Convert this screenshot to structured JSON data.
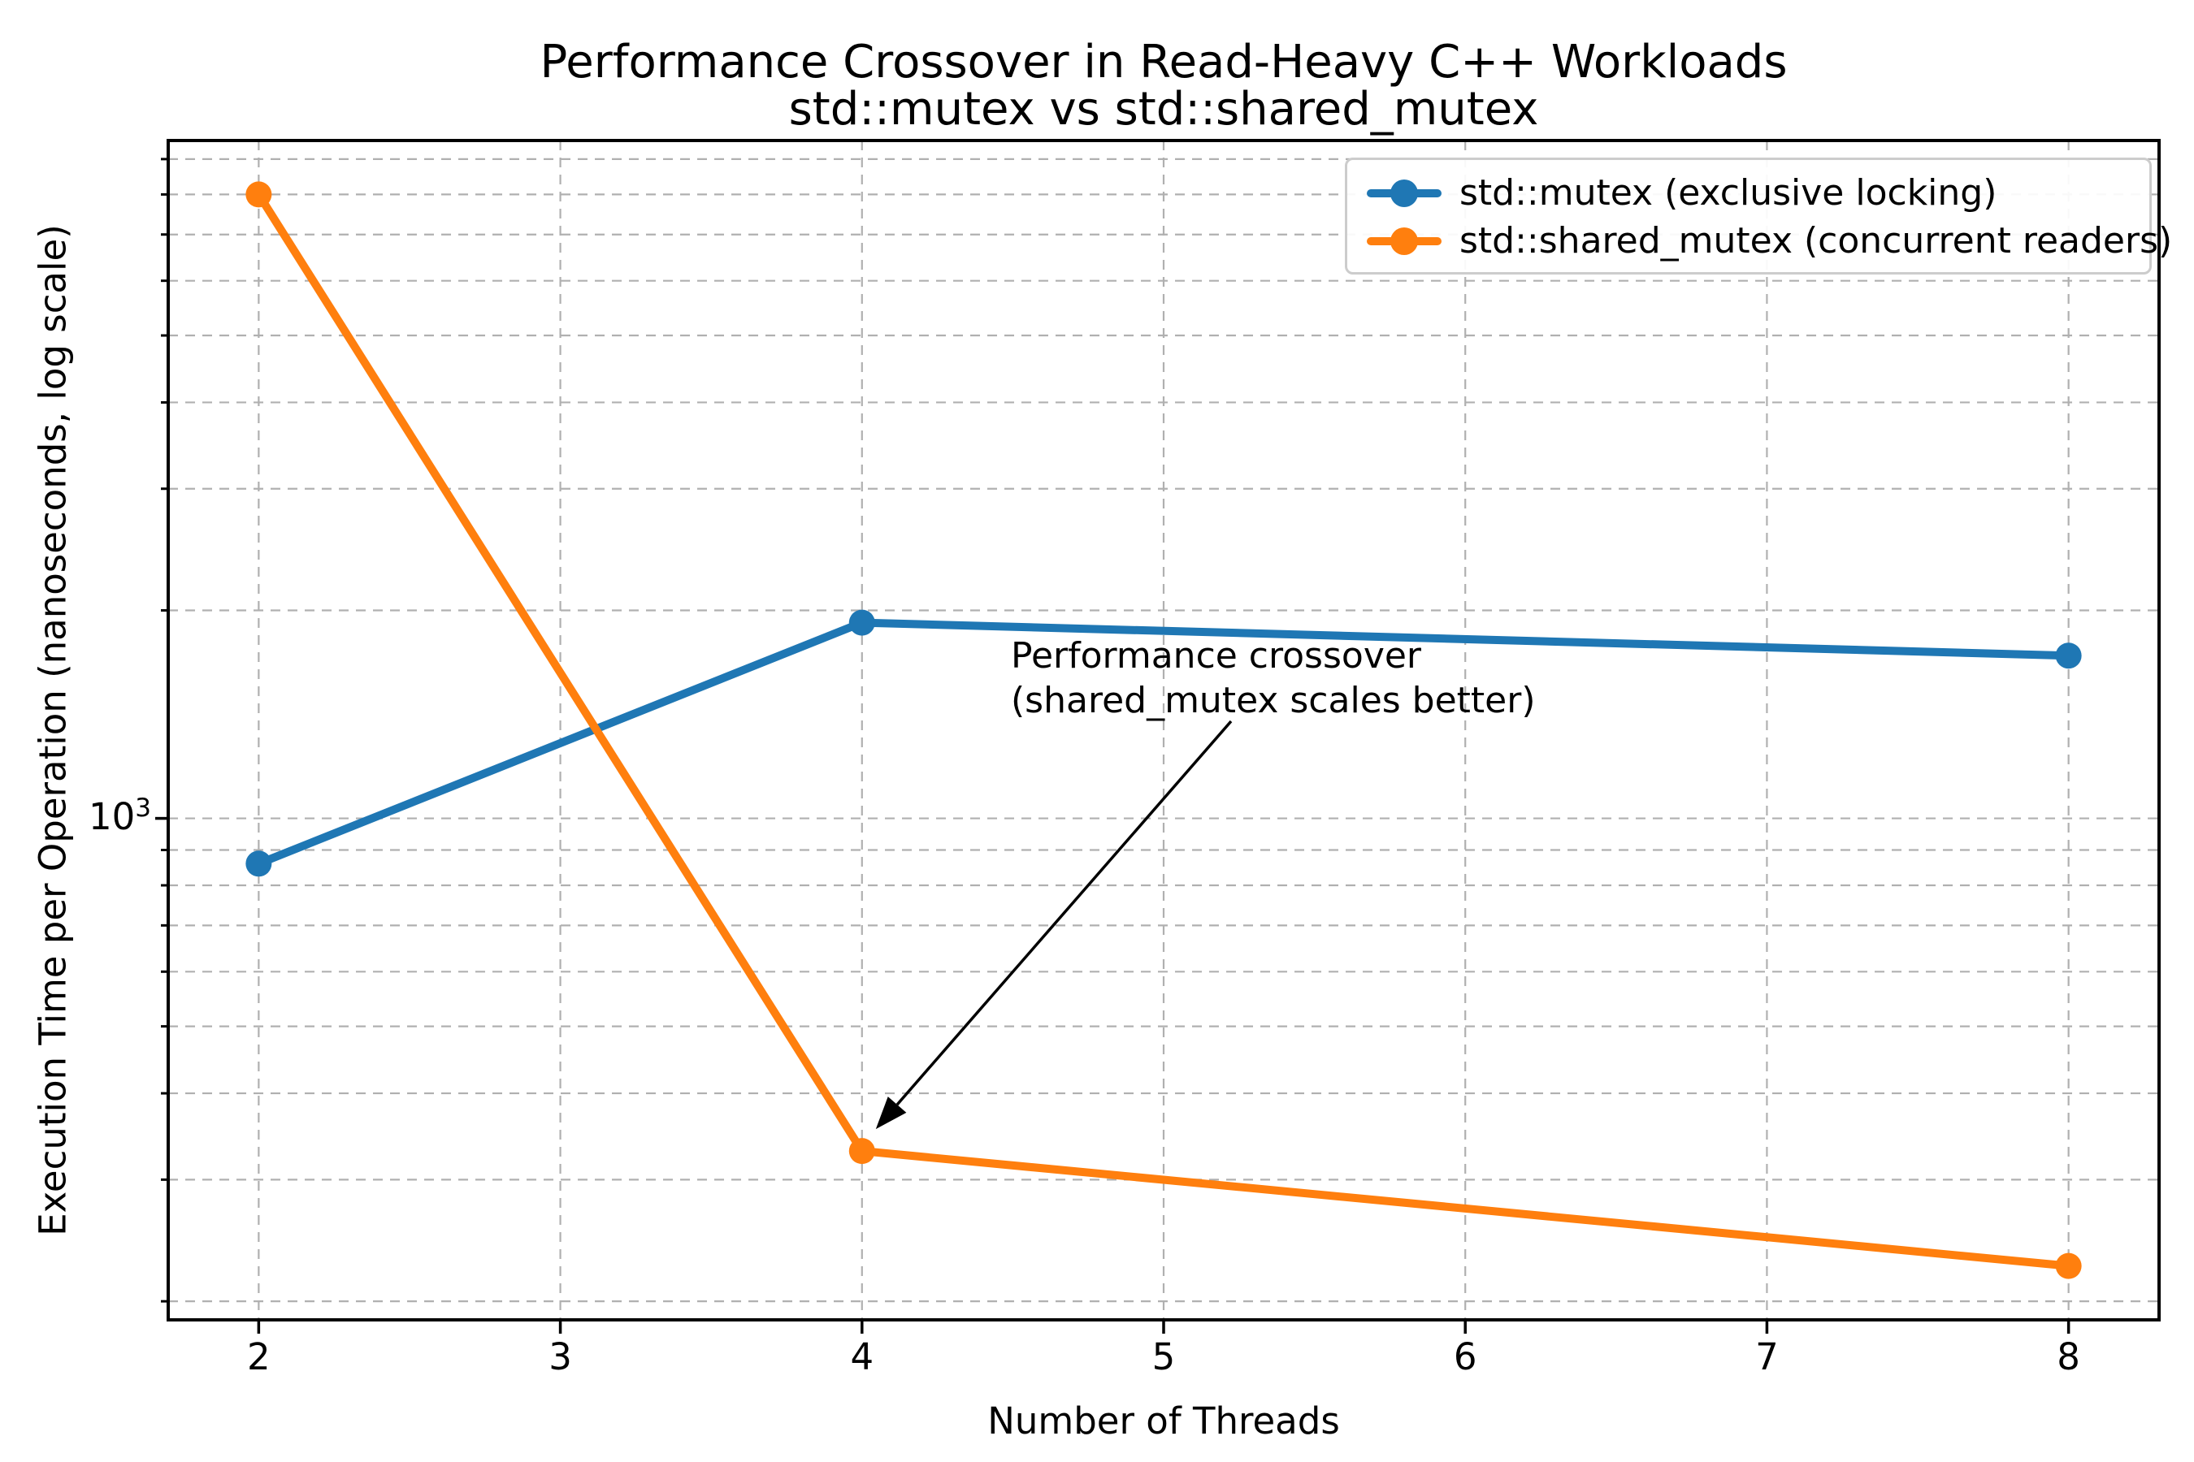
{
  "chart_data": {
    "type": "line",
    "title": "Performance Crossover in Read-Heavy C++ Workloads",
    "subtitle": "std::mutex vs std::shared_mutex",
    "xlabel": "Number of Threads",
    "ylabel": "Execution Time per Operation (nanoseconds, log scale)",
    "x": [
      2,
      4,
      8
    ],
    "series": [
      {
        "name": "std::mutex (exclusive locking)",
        "color": "#1f77b4",
        "values": [
          860,
          1920,
          1720
        ]
      },
      {
        "name": "std::shared_mutex (concurrent readers)",
        "color": "#ff7f0e",
        "values": [
          8000,
          330,
          225
        ]
      }
    ],
    "x_ticks": [
      2,
      3,
      4,
      5,
      6,
      7,
      8
    ],
    "y_scale": "log",
    "y_tick_label": {
      "base": "10",
      "exponent": "3"
    },
    "xlim": [
      1.7,
      8.3
    ],
    "ylim": [
      188,
      9575
    ],
    "grid": true,
    "grid_color": "#b0b0b0",
    "spine_color": "#000000",
    "legend_position": "upper right",
    "annotation": {
      "line1": "Performance crossover",
      "line2": "(shared_mutex scales better)",
      "target": {
        "x": 4,
        "y": 330
      }
    }
  }
}
